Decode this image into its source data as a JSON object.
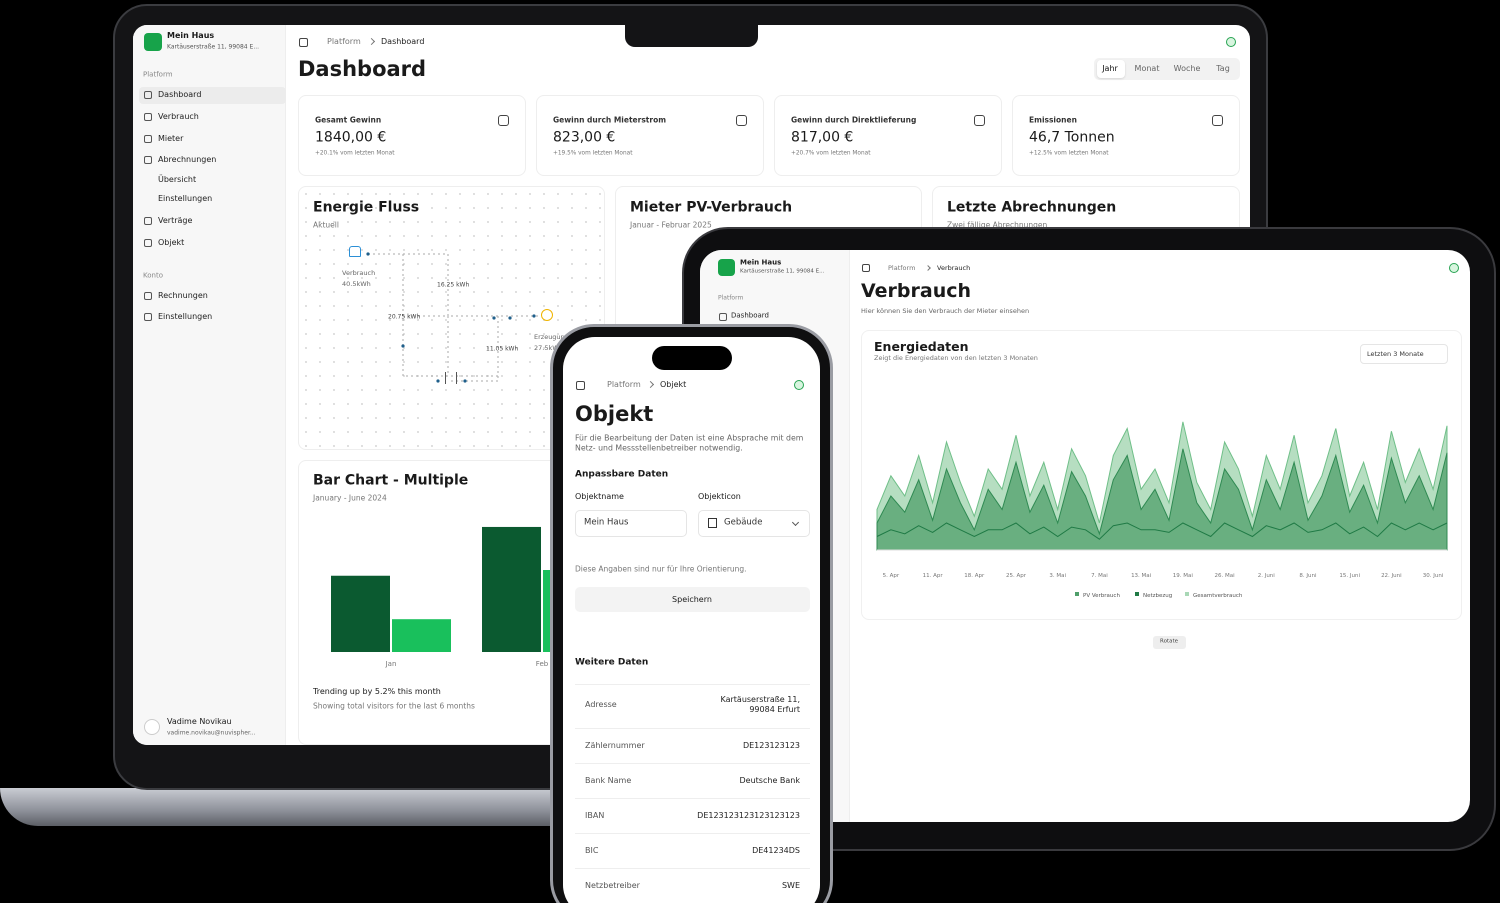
{
  "laptop": {
    "sidebar": {
      "project": "Mein Haus",
      "address": "Kartäuserstraße 11, 99084 E...",
      "section1": "Platform",
      "nav": [
        "Dashboard",
        "Verbrauch",
        "Mieter",
        "Abrechnungen",
        "Übersicht",
        "Einstellungen",
        "Verträge",
        "Objekt"
      ],
      "section2": "Konto",
      "nav2": [
        "Rechnungen",
        "Einstellungen"
      ],
      "user": {
        "name": "Vadime Novikau",
        "email": "vadime.novikau@nuvispher..."
      }
    },
    "breadcrumb": [
      "Platform",
      "Dashboard"
    ],
    "title": "Dashboard",
    "tabs": [
      "Jahr",
      "Monat",
      "Woche",
      "Tag"
    ],
    "cards": [
      {
        "label": "Gesamt Gewinn",
        "value": "1840,00 €",
        "note": "+20.1% vom letzten Monat"
      },
      {
        "label": "Gewinn durch Mieterstrom",
        "value": "823,00 €",
        "note": "+19.5% vom letzten Monat"
      },
      {
        "label": "Gewinn durch Direktlieferung",
        "value": "817,00 €",
        "note": "+20.7% vom letzten Monat"
      },
      {
        "label": "Emissionen",
        "value": "46,7 Tonnen",
        "note": "+12.5% vom letzten Monat"
      }
    ],
    "energy_flow": {
      "title": "Energie Fluss",
      "subtitle": "Aktuell",
      "consumer": "Verbrauch",
      "consumer_value": "40.5kWh",
      "producer": "Erzeugung",
      "producer_value": "27.5kWh",
      "flows": [
        "16.25 kWh",
        "20.75 kWh",
        "11.05 kWh"
      ]
    },
    "pv_card": {
      "title": "Mieter PV-Verbrauch",
      "subtitle": "Januar - Februar 2025"
    },
    "billing_card": {
      "title": "Letzte Abrechnungen",
      "subtitle": "Zwei fällige Abrechnungen"
    },
    "bar_card": {
      "footer": "Trending up by 5.2% this month",
      "note": "Showing total visitors for the last 6 months"
    }
  },
  "tablet": {
    "project": "Mein Haus",
    "address": "Kartäuserstraße 11, 99084 E...",
    "section": "Platform",
    "nav": [
      "Dashboard"
    ],
    "breadcrumb": [
      "Platform",
      "Verbrauch"
    ],
    "title": "Verbrauch",
    "subtitle": "Hier können Sie den Verbrauch der Mieter einsehen",
    "filter": "Letzten 3 Monate",
    "button": "Rotate"
  },
  "phone": {
    "breadcrumb": [
      "Platform",
      "Objekt"
    ],
    "title": "Objekt",
    "description": "Für die Bearbeitung der Daten ist eine Absprache mit dem Netz- und Messstellenbetreiber notwendig.",
    "section1": "Anpassbare Daten",
    "fields": [
      {
        "label": "Objektname",
        "value": "Mein Haus"
      },
      {
        "label": "Objekticon",
        "value": "Gebäude"
      }
    ],
    "hint": "Diese Angaben sind nur für Ihre Orientierung.",
    "button": "Speichern",
    "section2": "Weitere Daten",
    "rows": [
      [
        "Adresse",
        "Kartäuserstraße 11, 99084 Erfurt"
      ],
      [
        "Zählernummer",
        "DE123123123"
      ],
      [
        "Bank Name",
        "Deutsche Bank"
      ],
      [
        "IBAN",
        "DE123123123123123123"
      ],
      [
        "BIC",
        "DE41234DS"
      ],
      [
        "Netzbetreiber",
        "SWE"
      ]
    ]
  },
  "chart_data": [
    {
      "type": "bar",
      "title": "Bar Chart - Multiple",
      "subtitle": "January - June 2024",
      "categories": [
        "Jan",
        "Feb"
      ],
      "series": [
        {
          "color": "#0b5a30",
          "values": [
            186,
            305
          ]
        },
        {
          "color": "#19c05c",
          "values": [
            80,
            200
          ]
        }
      ]
    },
    {
      "type": "area",
      "title": "Energiedaten",
      "subtitle": "Zeigt die Energiedaten von den letzten 3 Monaten",
      "categories": [
        null,
        "5. Apr",
        null,
        null,
        "11. Apr",
        null,
        null,
        "18. Apr",
        null,
        null,
        "25. Apr",
        null,
        null,
        "3. Mai",
        null,
        null,
        "7. Mai",
        null,
        null,
        "13. Mai",
        null,
        null,
        "19. Mai",
        null,
        null,
        "26. Mai",
        null,
        null,
        "2. Juni",
        null,
        null,
        "8. Juni",
        null,
        null,
        "15. Juni",
        null,
        null,
        "22. Juni",
        null,
        null,
        "30. Juni",
        null
      ],
      "series": [
        {
          "name": "PV Verbrauch",
          "color": "#4f9f6a",
          "values": [
            20,
            40,
            28,
            52,
            22,
            60,
            35,
            15,
            45,
            30,
            65,
            28,
            48,
            20,
            58,
            40,
            12,
            52,
            70,
            30,
            45,
            22,
            75,
            35,
            20,
            60,
            45,
            15,
            52,
            30,
            65,
            22,
            40,
            70,
            28,
            48,
            20,
            68,
            35,
            55,
            30,
            72
          ]
        },
        {
          "name": "Netzbezug",
          "color": "#1f7a45",
          "values": [
            10,
            15,
            12,
            18,
            13,
            20,
            15,
            10,
            15,
            15,
            20,
            12,
            17,
            10,
            17,
            15,
            8,
            18,
            20,
            15,
            15,
            13,
            20,
            15,
            10,
            20,
            15,
            10,
            18,
            15,
            20,
            13,
            15,
            20,
            12,
            17,
            10,
            20,
            15,
            20,
            15,
            20
          ]
        },
        {
          "name": "Gesamtverbrauch",
          "color": "#a9d8b6",
          "values": [
            30,
            55,
            40,
            70,
            35,
            80,
            50,
            25,
            60,
            45,
            85,
            40,
            65,
            30,
            75,
            55,
            20,
            70,
            90,
            45,
            60,
            35,
            95,
            50,
            30,
            80,
            60,
            25,
            70,
            45,
            85,
            35,
            55,
            90,
            40,
            65,
            30,
            88,
            50,
            75,
            45,
            92
          ]
        }
      ]
    }
  ]
}
